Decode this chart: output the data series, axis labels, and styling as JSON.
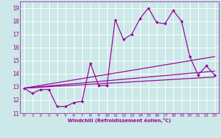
{
  "xlabel": "Windchill (Refroidissement éolien,°C)",
  "bg_color": "#cce8e8",
  "grid_color": "#ffffff",
  "line_color": "#990099",
  "spine_color": "#9955aa",
  "xlim": [
    -0.5,
    23.5
  ],
  "ylim": [
    11,
    19.5
  ],
  "yticks": [
    11,
    12,
    13,
    14,
    15,
    16,
    17,
    18,
    19
  ],
  "xticks": [
    0,
    1,
    2,
    3,
    4,
    5,
    6,
    7,
    8,
    9,
    10,
    11,
    12,
    13,
    14,
    15,
    16,
    17,
    18,
    19,
    20,
    21,
    22,
    23
  ],
  "series1_x": [
    0,
    1,
    2,
    3,
    4,
    5,
    6,
    7,
    8,
    9,
    10,
    11,
    12,
    13,
    14,
    15,
    16,
    17,
    18,
    19,
    20,
    21,
    22,
    23
  ],
  "series1_y": [
    12.9,
    12.5,
    12.8,
    12.8,
    11.5,
    11.5,
    11.8,
    11.9,
    14.8,
    13.1,
    13.1,
    18.1,
    16.6,
    17.0,
    18.2,
    19.0,
    17.9,
    17.8,
    18.8,
    18.0,
    15.3,
    13.9,
    14.6,
    13.9
  ],
  "series2_x": [
    0,
    23
  ],
  "series2_y": [
    12.9,
    13.75
  ],
  "series3_x": [
    0,
    23
  ],
  "series3_y": [
    12.9,
    14.2
  ],
  "series4_x": [
    0,
    23
  ],
  "series4_y": [
    12.9,
    15.3
  ]
}
